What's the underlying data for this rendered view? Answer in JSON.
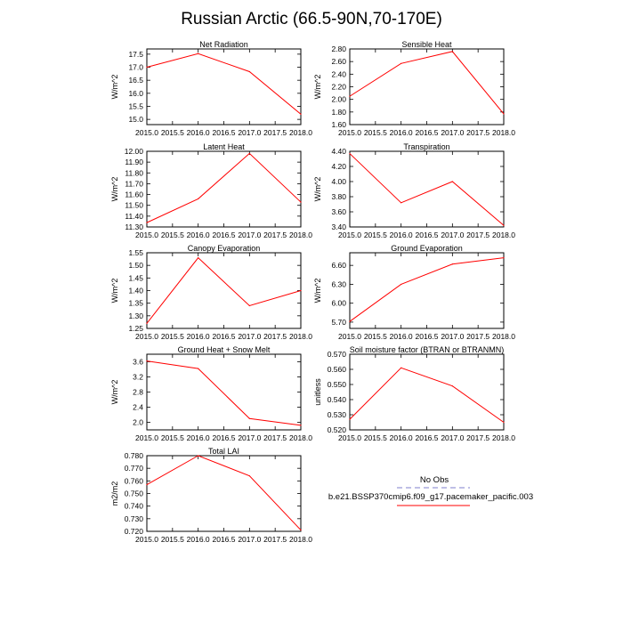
{
  "title": "Russian Arctic (66.5-90N,70-170E)",
  "colors": {
    "model_line": "#ff0000",
    "obs_line": "#aaaadd",
    "axis": "#000000"
  },
  "legend": {
    "obs_label": "No Obs",
    "model_label": "b.e21.BSSP370cmip6.f09_g17.pacemaker_pacific.003"
  },
  "chart_data": [
    {
      "type": "line",
      "title": "Net Radiation",
      "ylabel": "W/m^2",
      "xlabel": "",
      "x": [
        2015,
        2016,
        2017,
        2018
      ],
      "values": [
        17.0,
        17.52,
        16.83,
        15.2
      ],
      "xlim": [
        2015,
        2018
      ],
      "ylim": [
        14.8,
        17.7
      ],
      "xticks": [
        "2015.0",
        "2015.5",
        "2016.0",
        "2016.5",
        "2017.0",
        "2017.5",
        "2018.0"
      ],
      "yticks": [
        "15.0",
        "15.5",
        "16.0",
        "16.5",
        "17.0",
        "17.5"
      ]
    },
    {
      "type": "line",
      "title": "Sensible Heat",
      "ylabel": "W/m^2",
      "xlabel": "",
      "x": [
        2015,
        2016,
        2017,
        2018
      ],
      "values": [
        2.05,
        2.57,
        2.76,
        1.77
      ],
      "xlim": [
        2015,
        2018
      ],
      "ylim": [
        1.6,
        2.8
      ],
      "xticks": [
        "2015.0",
        "2015.5",
        "2016.0",
        "2016.5",
        "2017.0",
        "2017.5",
        "2018.0"
      ],
      "yticks": [
        "1.60",
        "1.80",
        "2.00",
        "2.20",
        "2.40",
        "2.60",
        "2.80"
      ]
    },
    {
      "type": "line",
      "title": "Latent Heat",
      "ylabel": "W/m^2",
      "xlabel": "",
      "x": [
        2015,
        2016,
        2017,
        2018
      ],
      "values": [
        11.34,
        11.56,
        11.98,
        11.53
      ],
      "xlim": [
        2015,
        2018
      ],
      "ylim": [
        11.3,
        12.0
      ],
      "xticks": [
        "2015.0",
        "2015.5",
        "2016.0",
        "2016.5",
        "2017.0",
        "2017.5",
        "2018.0"
      ],
      "yticks": [
        "11.30",
        "11.40",
        "11.50",
        "11.60",
        "11.70",
        "11.80",
        "11.90",
        "12.00"
      ]
    },
    {
      "type": "line",
      "title": "Transpiration",
      "ylabel": "W/m^2",
      "xlabel": "",
      "x": [
        2015,
        2016,
        2017,
        2018
      ],
      "values": [
        4.37,
        3.72,
        4.0,
        3.42
      ],
      "xlim": [
        2015,
        2018
      ],
      "ylim": [
        3.4,
        4.4
      ],
      "xticks": [
        "2015.0",
        "2015.5",
        "2016.0",
        "2016.5",
        "2017.0",
        "2017.5",
        "2018.0"
      ],
      "yticks": [
        "3.40",
        "3.60",
        "3.80",
        "4.00",
        "4.20",
        "4.40"
      ]
    },
    {
      "type": "line",
      "title": "Canopy Evaporation",
      "ylabel": "W/m^2",
      "xlabel": "",
      "x": [
        2015,
        2016,
        2017,
        2018
      ],
      "values": [
        1.27,
        1.53,
        1.34,
        1.4
      ],
      "xlim": [
        2015,
        2018
      ],
      "ylim": [
        1.25,
        1.55
      ],
      "xticks": [
        "2015.0",
        "2015.5",
        "2016.0",
        "2016.5",
        "2017.0",
        "2017.5",
        "2018.0"
      ],
      "yticks": [
        "1.25",
        "1.30",
        "1.35",
        "1.40",
        "1.45",
        "1.50",
        "1.55"
      ]
    },
    {
      "type": "line",
      "title": "Ground Evaporation",
      "ylabel": "W/m^2",
      "xlabel": "",
      "x": [
        2015,
        2016,
        2017,
        2018
      ],
      "values": [
        5.71,
        6.3,
        6.62,
        6.72
      ],
      "xlim": [
        2015,
        2018
      ],
      "ylim": [
        5.6,
        6.8
      ],
      "xticks": [
        "2015.0",
        "2015.5",
        "2016.0",
        "2016.5",
        "2017.0",
        "2017.5",
        "2018.0"
      ],
      "yticks": [
        "5.70",
        "6.00",
        "6.30",
        "6.60"
      ]
    },
    {
      "type": "line",
      "title": "Ground Heat + Snow Melt",
      "ylabel": "W/m^2",
      "xlabel": "",
      "x": [
        2015,
        2016,
        2017,
        2018
      ],
      "values": [
        3.62,
        3.42,
        2.1,
        1.92
      ],
      "xlim": [
        2015,
        2018
      ],
      "ylim": [
        1.8,
        3.8
      ],
      "xticks": [
        "2015.0",
        "2015.5",
        "2016.0",
        "2016.5",
        "2017.0",
        "2017.5",
        "2018.0"
      ],
      "yticks": [
        "2.0",
        "2.4",
        "2.8",
        "3.2",
        "3.6"
      ]
    },
    {
      "type": "line",
      "title": "Soil moisture factor (BTRAN or BTRANMN)",
      "ylabel": "unitless",
      "xlabel": "",
      "x": [
        2015,
        2016,
        2017,
        2018
      ],
      "values": [
        0.527,
        0.561,
        0.549,
        0.525
      ],
      "xlim": [
        2015,
        2018
      ],
      "ylim": [
        0.52,
        0.57
      ],
      "xticks": [
        "2015.0",
        "2015.5",
        "2016.0",
        "2016.5",
        "2017.0",
        "2017.5",
        "2018.0"
      ],
      "yticks": [
        "0.520",
        "0.530",
        "0.540",
        "0.550",
        "0.560",
        "0.570"
      ]
    },
    {
      "type": "line",
      "title": "Total LAI",
      "ylabel": "m2/m2",
      "xlabel": "",
      "x": [
        2015,
        2016,
        2017,
        2018
      ],
      "values": [
        0.757,
        0.78,
        0.764,
        0.721
      ],
      "xlim": [
        2015,
        2018
      ],
      "ylim": [
        0.72,
        0.78
      ],
      "xticks": [
        "2015.0",
        "2015.5",
        "2016.0",
        "2016.5",
        "2017.0",
        "2017.5",
        "2018.0"
      ],
      "yticks": [
        "0.720",
        "0.730",
        "0.740",
        "0.750",
        "0.760",
        "0.770",
        "0.780"
      ]
    }
  ]
}
